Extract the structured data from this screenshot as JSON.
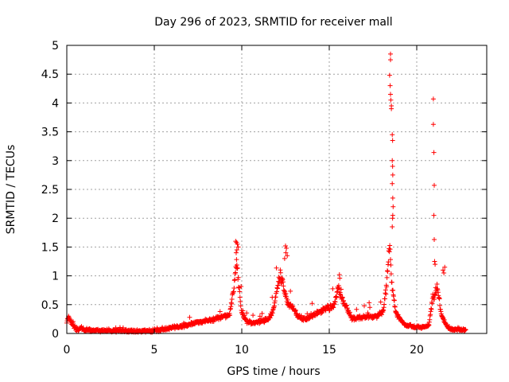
{
  "chart_data": {
    "type": "scatter",
    "title": "Day 296 of 2023, SRMTID for receiver mall",
    "xlabel": "GPS time / hours",
    "ylabel": "SRMTID / TECUs",
    "xlim": [
      0,
      24
    ],
    "ylim": [
      0,
      5
    ],
    "xticks": [
      0,
      5,
      10,
      15,
      20
    ],
    "xtick_labels": [
      "0",
      "5",
      "10",
      "15",
      "20"
    ],
    "yticks": [
      0,
      0.5,
      1,
      1.5,
      2,
      2.5,
      3,
      3.5,
      4,
      4.5,
      5
    ],
    "ytick_labels": [
      "0",
      "0.5",
      "1",
      "1.5",
      "2",
      "2.5",
      "3",
      "3.5",
      "4",
      "4.5",
      "5"
    ],
    "grid": true,
    "marker": "+",
    "marker_color": "#ff0000",
    "series": [
      {
        "name": "SRMTID",
        "profile": [
          [
            0.0,
            0.18
          ],
          [
            0.1,
            0.28
          ],
          [
            0.2,
            0.22
          ],
          [
            0.4,
            0.12
          ],
          [
            0.6,
            0.06
          ],
          [
            0.8,
            0.08
          ],
          [
            1.0,
            0.06
          ],
          [
            2.0,
            0.05
          ],
          [
            3.0,
            0.05
          ],
          [
            4.0,
            0.04
          ],
          [
            5.0,
            0.05
          ],
          [
            5.5,
            0.07
          ],
          [
            6.0,
            0.1
          ],
          [
            6.5,
            0.12
          ],
          [
            7.0,
            0.15
          ],
          [
            7.5,
            0.2
          ],
          [
            8.0,
            0.22
          ],
          [
            8.5,
            0.25
          ],
          [
            9.0,
            0.3
          ],
          [
            9.3,
            0.32
          ],
          [
            9.5,
            0.7
          ],
          [
            9.7,
            1.25
          ],
          [
            9.85,
            0.8
          ],
          [
            10.0,
            0.35
          ],
          [
            10.3,
            0.2
          ],
          [
            10.7,
            0.18
          ],
          [
            11.0,
            0.2
          ],
          [
            11.5,
            0.25
          ],
          [
            11.8,
            0.4
          ],
          [
            12.0,
            0.75
          ],
          [
            12.2,
            1.0
          ],
          [
            12.4,
            0.8
          ],
          [
            12.6,
            0.55
          ],
          [
            12.9,
            0.45
          ],
          [
            13.2,
            0.3
          ],
          [
            13.6,
            0.25
          ],
          [
            14.0,
            0.3
          ],
          [
            14.3,
            0.35
          ],
          [
            14.6,
            0.4
          ],
          [
            15.0,
            0.45
          ],
          [
            15.3,
            0.5
          ],
          [
            15.5,
            0.8
          ],
          [
            15.7,
            0.6
          ],
          [
            16.0,
            0.45
          ],
          [
            16.3,
            0.25
          ],
          [
            16.8,
            0.28
          ],
          [
            17.3,
            0.3
          ],
          [
            17.8,
            0.3
          ],
          [
            18.1,
            0.4
          ],
          [
            18.3,
            0.9
          ],
          [
            18.45,
            1.6
          ],
          [
            18.55,
            0.9
          ],
          [
            18.8,
            0.35
          ],
          [
            19.3,
            0.15
          ],
          [
            19.8,
            0.12
          ],
          [
            20.3,
            0.1
          ],
          [
            20.7,
            0.15
          ],
          [
            20.9,
            0.6
          ],
          [
            21.2,
            0.8
          ],
          [
            21.4,
            0.3
          ],
          [
            21.8,
            0.1
          ],
          [
            22.3,
            0.06
          ],
          [
            22.8,
            0.05
          ]
        ],
        "spikes": [
          [
            18.5,
            4.85
          ],
          [
            18.5,
            4.75
          ],
          [
            18.45,
            4.48
          ],
          [
            18.48,
            4.3
          ],
          [
            18.5,
            4.15
          ],
          [
            18.52,
            4.05
          ],
          [
            18.55,
            3.95
          ],
          [
            18.55,
            3.9
          ],
          [
            18.6,
            3.45
          ],
          [
            18.62,
            3.35
          ],
          [
            18.6,
            3.0
          ],
          [
            18.62,
            2.9
          ],
          [
            18.63,
            2.75
          ],
          [
            18.6,
            2.6
          ],
          [
            18.63,
            2.35
          ],
          [
            18.65,
            2.2
          ],
          [
            18.63,
            2.05
          ],
          [
            18.62,
            2.0
          ],
          [
            18.6,
            1.85
          ],
          [
            20.95,
            4.07
          ],
          [
            20.95,
            3.63
          ],
          [
            20.98,
            3.14
          ],
          [
            21.0,
            2.57
          ],
          [
            20.98,
            2.05
          ],
          [
            21.0,
            1.63
          ],
          [
            21.02,
            1.25
          ],
          [
            21.05,
            1.2
          ],
          [
            9.65,
            1.6
          ],
          [
            9.7,
            1.58
          ],
          [
            9.75,
            1.55
          ],
          [
            9.8,
            1.5
          ],
          [
            9.72,
            1.45
          ],
          [
            9.68,
            1.4
          ],
          [
            12.5,
            1.52
          ],
          [
            12.55,
            1.48
          ],
          [
            12.52,
            1.4
          ],
          [
            12.45,
            1.3
          ],
          [
            12.6,
            1.35
          ],
          [
            15.58,
            1.02
          ],
          [
            15.6,
            0.96
          ],
          [
            21.6,
            1.15
          ],
          [
            21.5,
            1.1
          ],
          [
            21.55,
            1.05
          ]
        ],
        "seed": 296
      }
    ]
  }
}
